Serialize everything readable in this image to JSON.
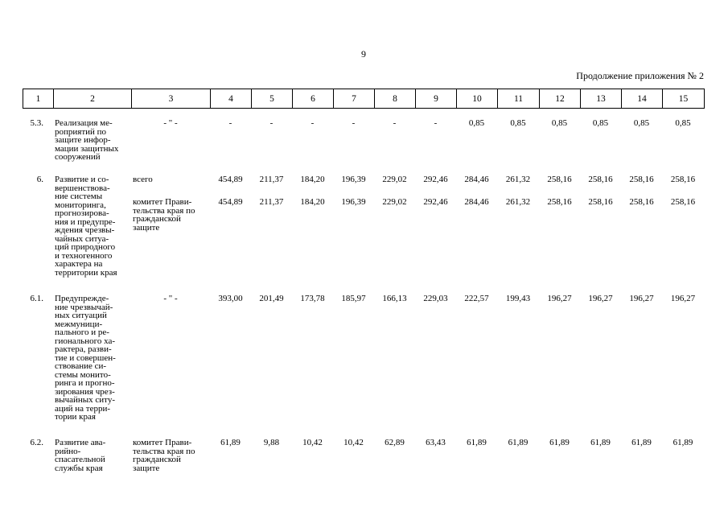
{
  "page_number": "9",
  "caption": "Продолжение приложения № 2",
  "table": {
    "header": [
      "1",
      "2",
      "3",
      "4",
      "5",
      "6",
      "7",
      "8",
      "9",
      "10",
      "11",
      "12",
      "13",
      "14",
      "15"
    ],
    "rows": [
      {
        "num": "5.3.",
        "name": "Реализация ме-\nроприятий по\nзащите инфор-\nмации защитных\nсооружений",
        "sub": [
          {
            "executor": "- \" -",
            "values": [
              "-",
              "-",
              "-",
              "-",
              "-",
              "-",
              "0,85",
              "0,85",
              "0,85",
              "0,85",
              "0,85",
              "0,85"
            ]
          }
        ]
      },
      {
        "num": "6.",
        "name": "Развитие и со-\nвершенствова-\nние системы\nмониторинга,\nпрогнозирова-\nния и предупре-\nждения чрезвы-\nчайных ситуа-\nций природного\nи техногенного\nхарактера на\nтерритории края",
        "sub": [
          {
            "executor": "всего",
            "values": [
              "454,89",
              "211,37",
              "184,20",
              "196,39",
              "229,02",
              "292,46",
              "284,46",
              "261,32",
              "258,16",
              "258,16",
              "258,16",
              "258,16"
            ]
          },
          {
            "executor": "комитет Прави-\nтельства края по\nгражданской\nзащите",
            "values": [
              "454,89",
              "211,37",
              "184,20",
              "196,39",
              "229,02",
              "292,46",
              "284,46",
              "261,32",
              "258,16",
              "258,16",
              "258,16",
              "258,16"
            ]
          }
        ]
      },
      {
        "num": "6.1.",
        "name": "Предупрежде-\nние чрезвычай-\nных ситуаций\nмежмуници-\nпального и ре-\nгионального ха-\nрактера, разви-\nтие и совершен-\nствование си-\nстемы монито-\nринга и прогно-\nзирования чрез-\nвычайных ситу-\nаций на терри-\nтории края",
        "sub": [
          {
            "executor": "- \" -",
            "values": [
              "393,00",
              "201,49",
              "173,78",
              "185,97",
              "166,13",
              "229,03",
              "222,57",
              "199,43",
              "196,27",
              "196,27",
              "196,27",
              "196,27"
            ]
          }
        ]
      },
      {
        "num": "6.2.",
        "name": "Развитие ава-\nрийно-\nспасательной\nслужбы края",
        "sub": [
          {
            "executor": "комитет Прави-\nтельства края по\nгражданской\nзащите",
            "values": [
              "61,89",
              "9,88",
              "10,42",
              "10,42",
              "62,89",
              "63,43",
              "61,89",
              "61,89",
              "61,89",
              "61,89",
              "61,89",
              "61,89"
            ]
          }
        ]
      }
    ]
  }
}
